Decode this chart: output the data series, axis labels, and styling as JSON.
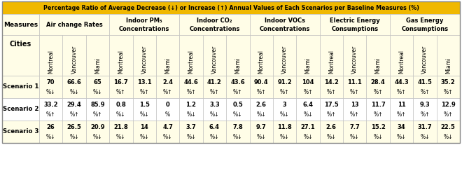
{
  "title": "Percentage Ratio of Average Decrease (↓) or Increase (↑) Annual Values of Each Scenarios per Baseline Measures (%)",
  "group_labels": [
    "Air change Rates",
    "Indoor PM₅\nConcentrations",
    "Indoor CO₂\nConcentrations",
    "Indoor VOCs\nConcentrations",
    "Electric Energy\nConsumptions",
    "Gas Energy\nConsumptions"
  ],
  "cities": [
    "Montreal",
    "Vancouver",
    "Miami"
  ],
  "scenario1_values": [
    "70",
    "66.6",
    "65",
    "16.7",
    "13.1",
    "2.4",
    "44.6",
    "41.2",
    "43.6",
    "90.4",
    "91.2",
    "104",
    "14.2",
    "11.1",
    "28.4",
    "44.3",
    "41.5",
    "35.2"
  ],
  "scenario1_arrows": [
    "↓",
    "↓",
    "↓",
    "↑",
    "↑",
    "↑",
    "↑",
    "↑",
    "↑",
    "↑",
    "↑",
    "↑",
    "↑",
    "↑",
    "↑",
    "↑",
    "↑",
    "↑"
  ],
  "scenario2_values": [
    "33.2",
    "29.4",
    "85.9",
    "0.8",
    "1.5",
    "0",
    "1.2",
    "3.3",
    "0.5",
    "2.6",
    "3",
    "6.4",
    "17.5",
    "13",
    "11.7",
    "11",
    "9.3",
    "12.9"
  ],
  "scenario2_arrows": [
    "↑",
    "↑",
    "↑",
    "↓",
    "↓",
    "",
    "↓",
    "↓",
    "↓",
    "↓",
    "↓",
    "↓",
    "↑",
    "↑",
    "↑",
    "↑",
    "↑",
    "↑"
  ],
  "scenario3_values": [
    "26",
    "26.5",
    "20.9",
    "21.8",
    "14",
    "4.7",
    "3.7",
    "6.4",
    "7.8",
    "9.7",
    "11.8",
    "27.1",
    "2.6",
    "7.7",
    "15.2",
    "34",
    "31.7",
    "22.5"
  ],
  "scenario3_arrows": [
    "↓",
    "↓",
    "↓",
    "↓",
    "↓",
    "↓",
    "↓",
    "↓",
    "↓",
    "↓",
    "↓",
    "↓",
    "↓",
    "↓",
    "↓",
    "↓",
    "↓",
    "↓"
  ],
  "title_bg": "#F0B800",
  "header_bg": "#FFFDE7",
  "row_bg_light": "#FFFDE7",
  "row_bg_white": "#FFFFFF",
  "border_color": "#BBBBBB"
}
